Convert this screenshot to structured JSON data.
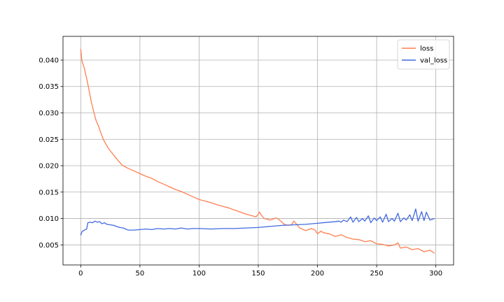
{
  "chart_data": {
    "type": "line",
    "title": "",
    "xlabel": "",
    "ylabel": "",
    "xlim": [
      -15,
      315
    ],
    "ylim": [
      0.0012,
      0.0445
    ],
    "grid": true,
    "legend_position": "top-right",
    "x_ticks": [
      0,
      50,
      100,
      150,
      200,
      250,
      300
    ],
    "y_ticks": [
      0.005,
      0.01,
      0.015,
      0.02,
      0.025,
      0.03,
      0.035,
      0.04
    ],
    "x_tick_labels": [
      "0",
      "50",
      "100",
      "150",
      "200",
      "250",
      "300"
    ],
    "y_tick_labels": [
      "0.005",
      "0.010",
      "0.015",
      "0.020",
      "0.025",
      "0.030",
      "0.035",
      "0.040"
    ],
    "series": [
      {
        "name": "loss",
        "color": "#ff7f50",
        "x": [
          0,
          1,
          3,
          5,
          7,
          9,
          11,
          13,
          15,
          17,
          19,
          21,
          23,
          25,
          30,
          35,
          40,
          45,
          50,
          55,
          60,
          65,
          70,
          75,
          80,
          85,
          90,
          95,
          100,
          105,
          110,
          115,
          120,
          125,
          130,
          135,
          140,
          145,
          148,
          150,
          151,
          153,
          155,
          160,
          165,
          167,
          170,
          172,
          175,
          178,
          180,
          182,
          185,
          190,
          195,
          198,
          200,
          203,
          205,
          210,
          215,
          220,
          225,
          230,
          235,
          240,
          245,
          250,
          255,
          260,
          265,
          268,
          270,
          275,
          280,
          285,
          290,
          295,
          299
        ],
        "y": [
          0.0421,
          0.0398,
          0.0385,
          0.0365,
          0.0343,
          0.032,
          0.0302,
          0.0285,
          0.0275,
          0.0262,
          0.025,
          0.0242,
          0.0234,
          0.0228,
          0.0214,
          0.0201,
          0.0195,
          0.019,
          0.0185,
          0.018,
          0.0176,
          0.017,
          0.0165,
          0.016,
          0.0155,
          0.0151,
          0.0146,
          0.0141,
          0.0136,
          0.0133,
          0.013,
          0.0126,
          0.0123,
          0.012,
          0.0116,
          0.0112,
          0.0108,
          0.0105,
          0.0103,
          0.0108,
          0.0112,
          0.0105,
          0.01,
          0.0097,
          0.0101,
          0.0099,
          0.0093,
          0.0089,
          0.0087,
          0.0088,
          0.0095,
          0.009,
          0.0082,
          0.0077,
          0.0081,
          0.0078,
          0.0071,
          0.0076,
          0.0073,
          0.0071,
          0.0066,
          0.0069,
          0.0064,
          0.0061,
          0.006,
          0.0056,
          0.0058,
          0.0052,
          0.0051,
          0.0048,
          0.005,
          0.0054,
          0.0044,
          0.0046,
          0.0041,
          0.0043,
          0.0037,
          0.004,
          0.0034
        ]
      },
      {
        "name": "val_loss",
        "color": "#4169e1",
        "x": [
          0,
          1,
          3,
          5,
          6,
          8,
          10,
          12,
          14,
          16,
          18,
          20,
          22,
          25,
          28,
          30,
          33,
          36,
          40,
          45,
          50,
          55,
          60,
          65,
          70,
          75,
          80,
          85,
          90,
          95,
          100,
          110,
          120,
          130,
          140,
          150,
          160,
          170,
          180,
          190,
          200,
          205,
          210,
          215,
          218,
          220,
          222,
          225,
          228,
          230,
          233,
          235,
          238,
          240,
          243,
          245,
          248,
          250,
          253,
          255,
          258,
          260,
          263,
          265,
          268,
          270,
          273,
          275,
          278,
          280,
          283,
          285,
          288,
          290,
          292,
          295,
          299
        ],
        "y": [
          0.0068,
          0.0075,
          0.0078,
          0.008,
          0.0092,
          0.0093,
          0.0092,
          0.0095,
          0.0093,
          0.0094,
          0.009,
          0.0092,
          0.0089,
          0.0088,
          0.0087,
          0.0085,
          0.0083,
          0.0082,
          0.0078,
          0.0078,
          0.0079,
          0.008,
          0.0079,
          0.0081,
          0.008,
          0.0081,
          0.008,
          0.0082,
          0.008,
          0.0081,
          0.0081,
          0.008,
          0.0081,
          0.0081,
          0.0082,
          0.0083,
          0.0085,
          0.0087,
          0.0088,
          0.0089,
          0.0091,
          0.0092,
          0.0093,
          0.0094,
          0.0095,
          0.0093,
          0.0097,
          0.0094,
          0.0103,
          0.0093,
          0.0102,
          0.0094,
          0.01,
          0.0095,
          0.0105,
          0.0092,
          0.0101,
          0.0096,
          0.0103,
          0.0093,
          0.0108,
          0.0094,
          0.01,
          0.0095,
          0.011,
          0.0094,
          0.0101,
          0.0097,
          0.0107,
          0.0096,
          0.0118,
          0.0095,
          0.0113,
          0.0096,
          0.0112,
          0.0097,
          0.01
        ]
      }
    ]
  }
}
